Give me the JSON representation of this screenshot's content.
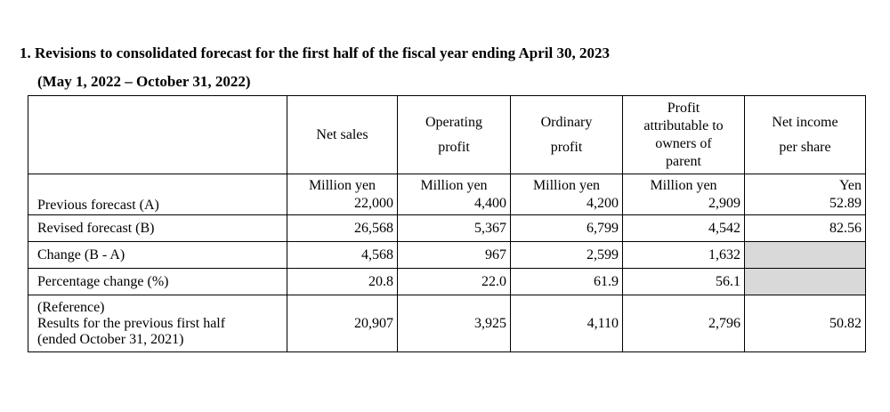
{
  "title": "1. Revisions to consolidated forecast for the first half of the fiscal year ending April 30, 2023",
  "subtitle": "(May 1, 2022 – October 31, 2022)",
  "columns": {
    "net_sales": "Net sales",
    "operating_profit": [
      "Operating",
      "profit"
    ],
    "ordinary_profit": [
      "Ordinary",
      "profit"
    ],
    "profit_parent": [
      "Profit",
      "attributable to",
      "owners of",
      "parent"
    ],
    "net_income_per_share": [
      "Net income",
      "per share"
    ]
  },
  "units": [
    "Million yen",
    "Million yen",
    "Million yen",
    "Million yen",
    "Yen"
  ],
  "rows": [
    {
      "label": "Previous forecast (A)",
      "values": [
        "22,000",
        "4,400",
        "4,200",
        "2,909",
        "52.89"
      ]
    },
    {
      "label": "Revised forecast (B)",
      "values": [
        "26,568",
        "5,367",
        "6,799",
        "4,542",
        "82.56"
      ]
    },
    {
      "label": "Change (B - A)",
      "values": [
        "4,568",
        "967",
        "2,599",
        "1,632",
        ""
      ]
    },
    {
      "label": "Percentage change (%)",
      "values": [
        "20.8",
        "22.0",
        "61.9",
        "56.1",
        ""
      ]
    },
    {
      "label": [
        "(Reference)",
        "Results for the previous first half",
        "(ended October 31, 2021)"
      ],
      "values": [
        "20,907",
        "3,925",
        "4,110",
        "2,796",
        "50.82"
      ]
    }
  ]
}
